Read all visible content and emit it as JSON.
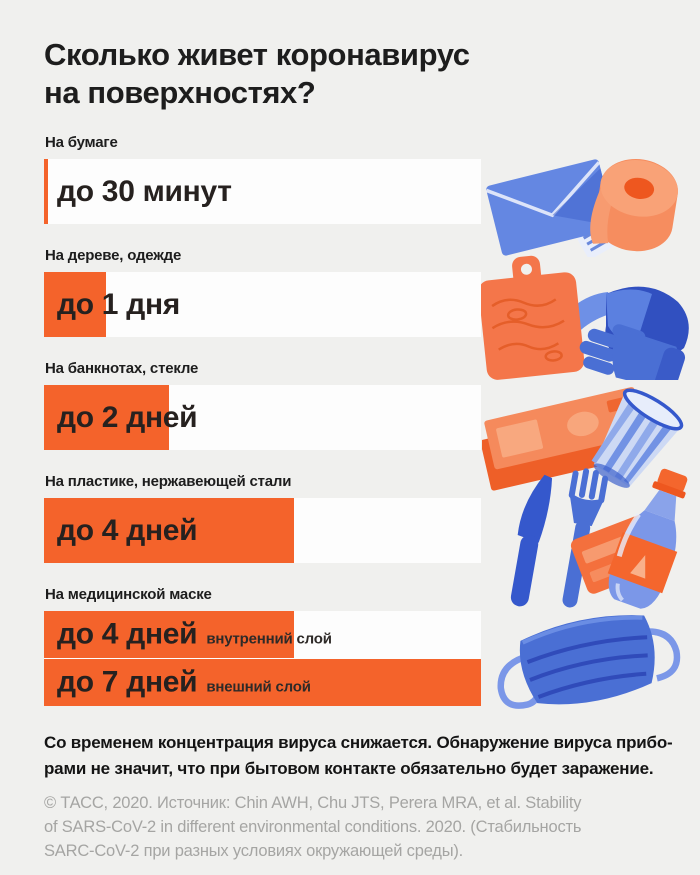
{
  "page": {
    "bg_color": "#f0f0ee",
    "accent_orange": "#f4632b",
    "title_line1": "Сколько живет коронавирус",
    "title_line2": "на поверхностях?"
  },
  "chart_data": {
    "type": "bar",
    "title": "Сколько живет коронавирус на поверхностях?",
    "unit": "days",
    "x_max_days": 7,
    "bar_scale_note": "horizontal bars, full track = 7 days",
    "rows": [
      {
        "label": "На бумаге",
        "value_text": "до 30 минут",
        "days": 0.021
      },
      {
        "label": "На дереве, одежде",
        "value_text": "до 1 дня",
        "days": 1
      },
      {
        "label": "На банкнотах, стекле",
        "value_text": "до 2 дней",
        "days": 2
      },
      {
        "label": "На пластике, нержавеющей стали",
        "value_text": "до 4 дней",
        "days": 4
      },
      {
        "label": "На медицинской маске",
        "bars": [
          {
            "value_text": "до 4 дней",
            "sublabel": "внутренний слой",
            "days": 4
          },
          {
            "value_text": "до 7 дней",
            "sublabel": "внешний слой",
            "days": 7
          }
        ]
      }
    ]
  },
  "footer": {
    "note_lines": [
      "Со временем концентрация вируса снижается. Обнаружение вируса прибо-",
      "рами не значит, что при бытовом контакте обязательно будет заражение."
    ],
    "source_lines": [
      "© ТАСС, 2020. Источник: Chin AWH, Chu JTS, Perera MRA, et al. Stability",
      "of SARS-CoV-2 in different environmental conditions. 2020. (Стабильность",
      "SARC-CoV-2 при разных условиях окружающей среды)."
    ]
  },
  "illustrations": {
    "paper": [
      "envelope",
      "receipt",
      "toilet-paper-roll"
    ],
    "wood_clothes": [
      "cutting-board",
      "cap",
      "glove"
    ],
    "banknotes_glass": [
      "banknotes",
      "faceted-glass"
    ],
    "plastic_steel": [
      "knife",
      "fork",
      "bank-card",
      "plastic-bottle"
    ],
    "mask": [
      "medical-mask"
    ]
  }
}
